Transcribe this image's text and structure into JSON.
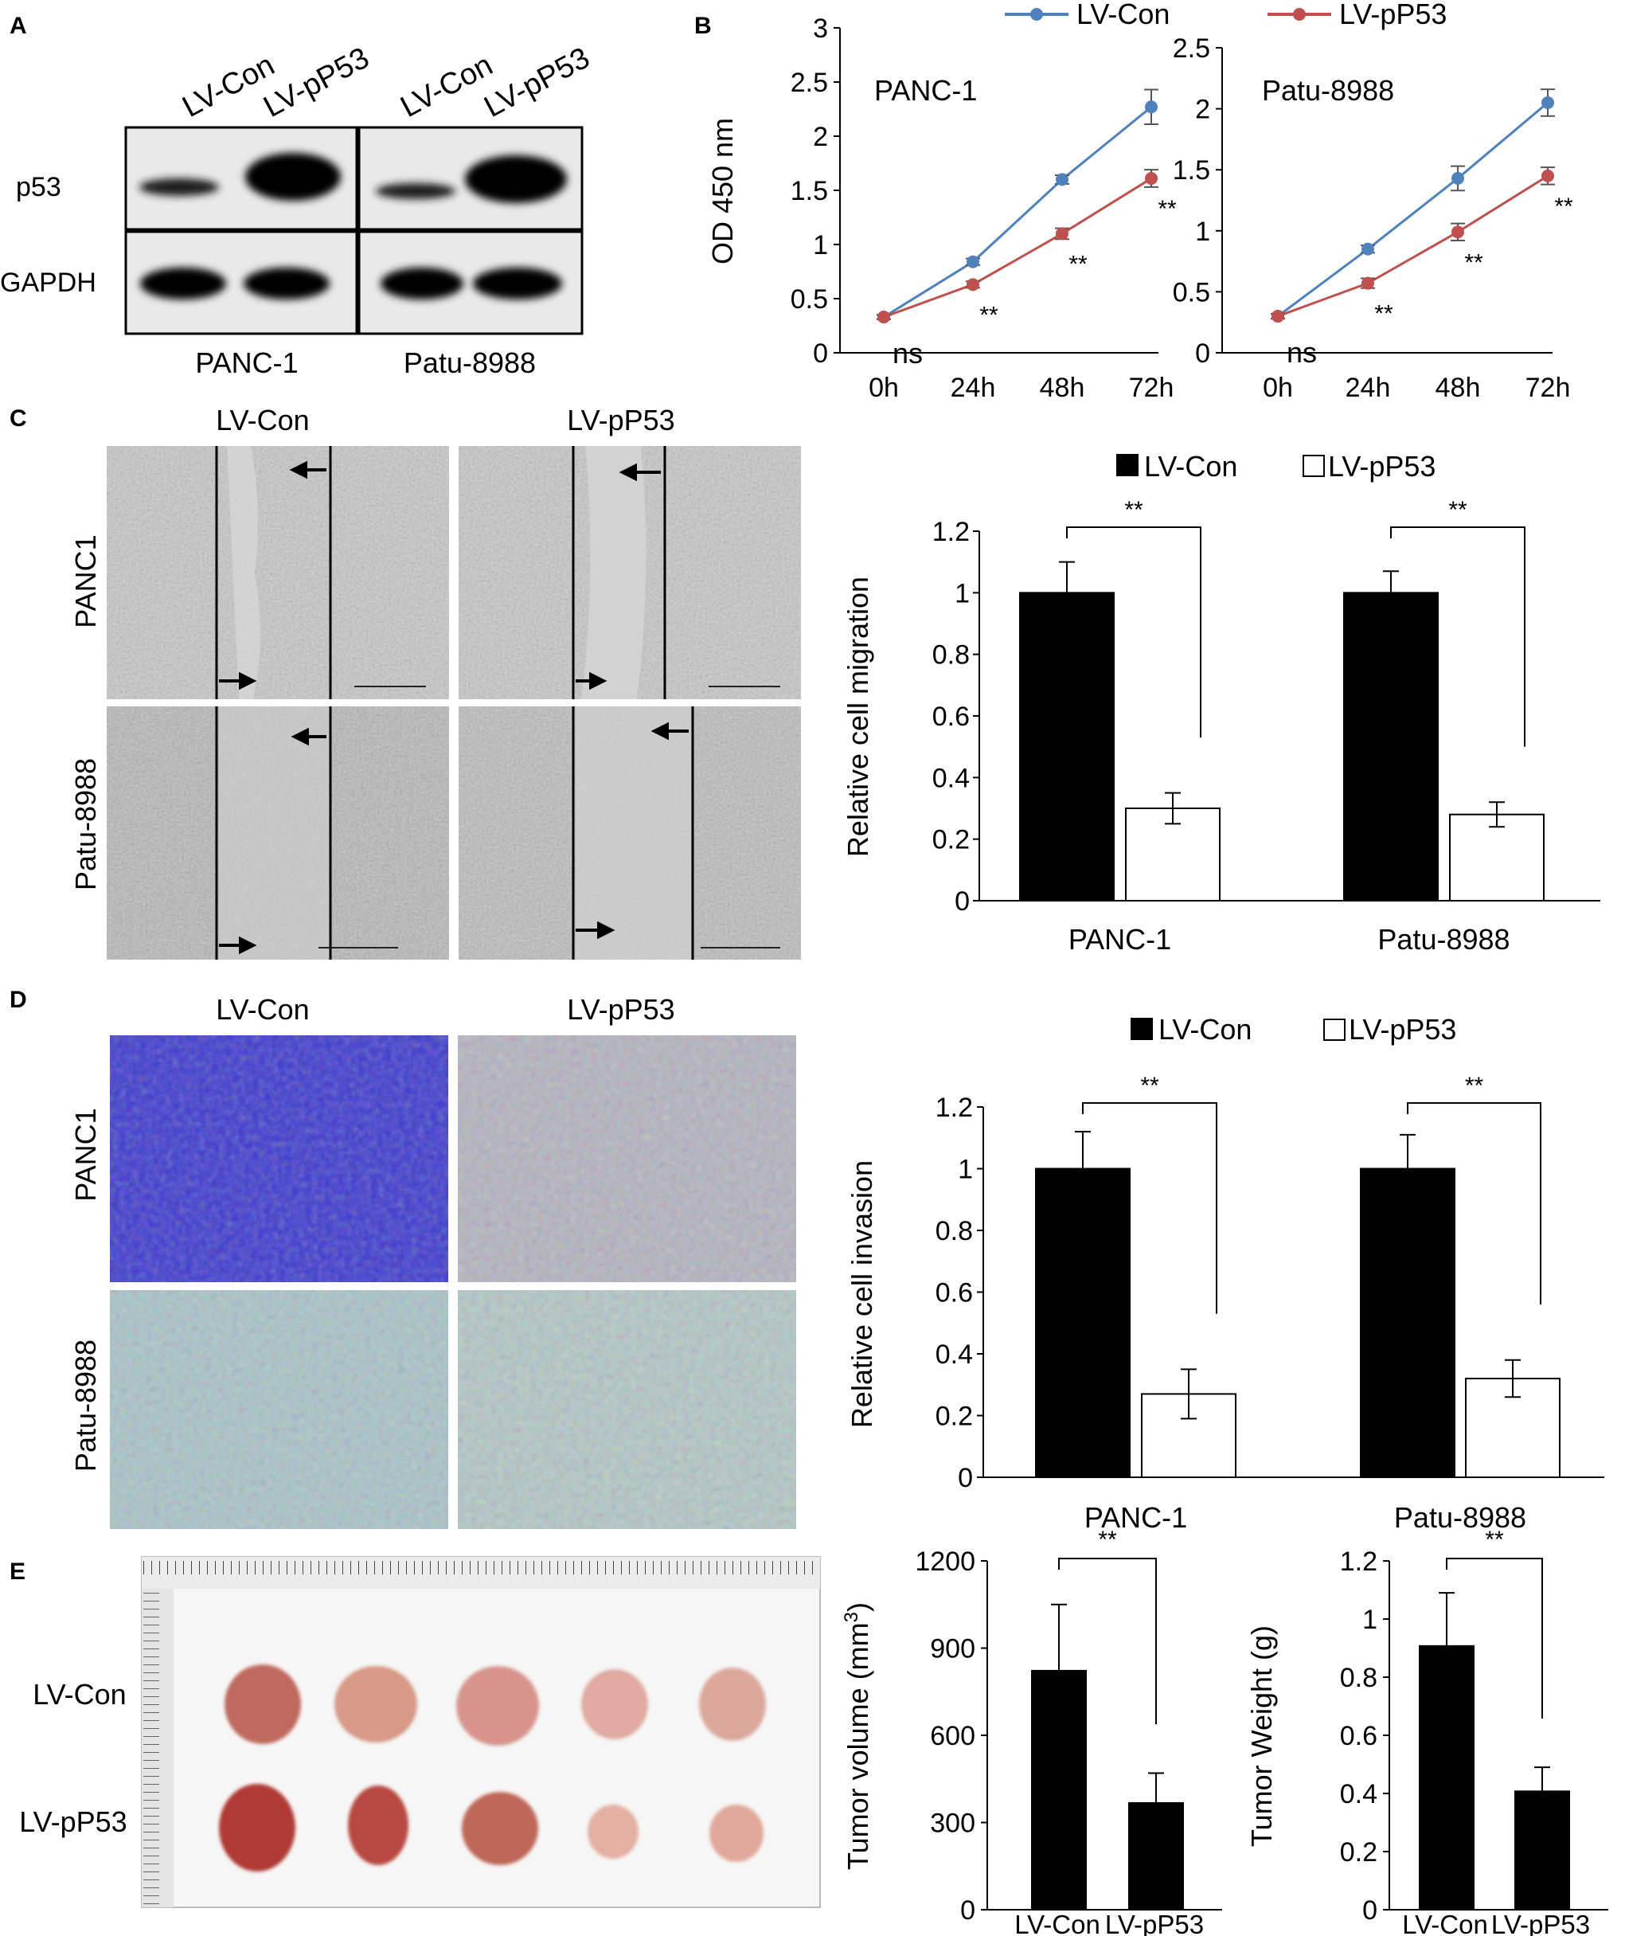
{
  "panels": {
    "A": "A",
    "B": "B",
    "C": "C",
    "D": "D",
    "E": "E"
  },
  "colors": {
    "lv_con": "#4F81BD",
    "lv_pp53": "#C0504D",
    "bar_con": "#000000",
    "bar_pp53": "#ffffff"
  },
  "legend": {
    "con": "LV-Con",
    "pp53": "LV-pP53",
    "con_box": "■ LV-Con",
    "pp53_box": "□ LV-pP53"
  },
  "western": {
    "lanes": [
      "LV-Con",
      "LV-pP53",
      "LV-Con",
      "LV-pP53"
    ],
    "rows": [
      "p53",
      "GAPDH"
    ],
    "cell_lines": [
      "PANC-1",
      "Patu-8988"
    ]
  },
  "micrographs": {
    "col_labels": [
      "LV-Con",
      "LV-pP53"
    ],
    "row_labels_C": [
      "PANC1",
      "Patu-8988"
    ],
    "row_labels_D": [
      "PANC1",
      "Patu-8988"
    ]
  },
  "tumor_photo": {
    "row_labels": [
      "LV-Con",
      "LV-pP53"
    ]
  },
  "chart_data": [
    {
      "id": "B1",
      "type": "line",
      "inset_label": "PANC-1",
      "ylabel": "OD 450 nm",
      "ylim": [
        0,
        3
      ],
      "yticks": [
        "0",
        "0.5",
        "1",
        "1.5",
        "2",
        "2.5",
        "3"
      ],
      "categories": [
        "0h",
        "24h",
        "48h",
        "72h"
      ],
      "series": [
        {
          "name": "LV-Con",
          "values": [
            0.33,
            0.84,
            1.6,
            2.27
          ],
          "errors": [
            0.02,
            0.03,
            0.04,
            0.16
          ]
        },
        {
          "name": "LV-pP53",
          "values": [
            0.33,
            0.63,
            1.1,
            1.61
          ],
          "errors": [
            0.02,
            0.03,
            0.05,
            0.08
          ]
        }
      ],
      "annotations": [
        "ns",
        "**",
        "**",
        "**"
      ]
    },
    {
      "id": "B2",
      "type": "line",
      "inset_label": "Patu-8988",
      "ylabel": "",
      "ylim": [
        0,
        2.5
      ],
      "yticks": [
        "0",
        "0.5",
        "1",
        "1.5",
        "2",
        "2.5"
      ],
      "categories": [
        "0h",
        "24h",
        "48h",
        "72h"
      ],
      "series": [
        {
          "name": "LV-Con",
          "values": [
            0.3,
            0.85,
            1.43,
            2.05
          ],
          "errors": [
            0.02,
            0.03,
            0.1,
            0.11
          ]
        },
        {
          "name": "LV-pP53",
          "values": [
            0.3,
            0.57,
            0.99,
            1.45
          ],
          "errors": [
            0.02,
            0.04,
            0.07,
            0.07
          ]
        }
      ],
      "annotations": [
        "ns",
        "**",
        "**",
        "**"
      ]
    },
    {
      "id": "C",
      "type": "bar",
      "ylabel": "Relative  cell migration",
      "ylim": [
        0,
        1.2
      ],
      "yticks": [
        "0",
        "0.2",
        "0.4",
        "0.6",
        "0.8",
        "1",
        "1.2"
      ],
      "categories": [
        "PANC-1",
        "Patu-8988"
      ],
      "series": [
        {
          "name": "LV-Con",
          "values": [
            1.0,
            1.0
          ],
          "errors": [
            0.1,
            0.07
          ]
        },
        {
          "name": "LV-pP53",
          "values": [
            0.3,
            0.28
          ],
          "errors": [
            0.05,
            0.04
          ]
        }
      ],
      "significance": [
        "**",
        "**"
      ]
    },
    {
      "id": "D",
      "type": "bar",
      "ylabel": "Relative  cell invasion",
      "ylim": [
        0,
        1.2
      ],
      "yticks": [
        "0",
        "0.2",
        "0.4",
        "0.6",
        "0.8",
        "1",
        "1.2"
      ],
      "categories": [
        "PANC-1",
        "Patu-8988"
      ],
      "series": [
        {
          "name": "LV-Con",
          "values": [
            1.0,
            1.0
          ],
          "errors": [
            0.12,
            0.11
          ]
        },
        {
          "name": "LV-pP53",
          "values": [
            0.27,
            0.32
          ],
          "errors": [
            0.08,
            0.06
          ]
        }
      ],
      "significance": [
        "**",
        "**"
      ]
    },
    {
      "id": "E1",
      "type": "bar",
      "ylabel_pre": "Tumor  volume  (mm",
      "ylabel_sup": "3",
      "ylabel_post": ")",
      "ylim": [
        0,
        1200
      ],
      "yticks": [
        "0",
        "300",
        "600",
        "900",
        "1200"
      ],
      "categories": [
        "LV-Con",
        "LV-pP53"
      ],
      "values": [
        825,
        370
      ],
      "errors": [
        225,
        100
      ],
      "significance": "**"
    },
    {
      "id": "E2",
      "type": "bar",
      "ylabel": "Tumor  Weight (g)",
      "ylim": [
        0,
        1.2
      ],
      "yticks": [
        "0",
        "0.2",
        "0.4",
        "0.6",
        "0.8",
        "1",
        "1.2"
      ],
      "categories": [
        "LV-Con",
        "LV-pP53"
      ],
      "values": [
        0.91,
        0.41
      ],
      "errors": [
        0.18,
        0.08
      ],
      "significance": "**"
    }
  ]
}
